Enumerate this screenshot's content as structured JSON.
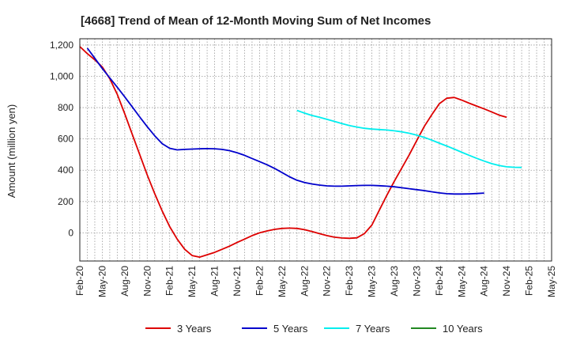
{
  "chart_data": {
    "type": "line",
    "title": "[4668]  Trend of Mean of 12-Month Moving Sum of Net Incomes",
    "ylabel": "Amount (million yen)",
    "xlabel": "",
    "x_ticks": [
      "Feb-20",
      "May-20",
      "Aug-20",
      "Nov-20",
      "Feb-21",
      "May-21",
      "Aug-21",
      "Nov-21",
      "Feb-22",
      "May-22",
      "Aug-22",
      "Nov-22",
      "Feb-23",
      "May-23",
      "Aug-23",
      "Nov-23",
      "Feb-24",
      "May-24",
      "Aug-24",
      "Nov-24",
      "Feb-25",
      "May-25"
    ],
    "y_ticks": [
      0,
      200,
      400,
      600,
      800,
      1000,
      1200
    ],
    "y_tick_labels": [
      "0",
      "200",
      "400",
      "600",
      "800",
      "1,000",
      "1,200"
    ],
    "ylim": [
      -180,
      1240
    ],
    "xlim": [
      "Feb-20",
      "May-25"
    ],
    "grid": true,
    "legend_position": "bottom",
    "series": [
      {
        "name": "3 Years",
        "color": "#dd0000",
        "points": [
          [
            "Feb-20",
            1190
          ],
          [
            "Mar-20",
            1145
          ],
          [
            "Apr-20",
            1105
          ],
          [
            "May-20",
            1060
          ],
          [
            "Jun-20",
            985
          ],
          [
            "Jul-20",
            885
          ],
          [
            "Aug-20",
            760
          ],
          [
            "Sep-20",
            630
          ],
          [
            "Oct-20",
            500
          ],
          [
            "Nov-20",
            370
          ],
          [
            "Dec-20",
            250
          ],
          [
            "Jan-21",
            140
          ],
          [
            "Feb-21",
            40
          ],
          [
            "Mar-21",
            -40
          ],
          [
            "Apr-21",
            -105
          ],
          [
            "May-21",
            -145
          ],
          [
            "Jun-21",
            -155
          ],
          [
            "Jul-21",
            -140
          ],
          [
            "Aug-21",
            -125
          ],
          [
            "Sep-21",
            -105
          ],
          [
            "Oct-21",
            -85
          ],
          [
            "Nov-21",
            -62
          ],
          [
            "Dec-21",
            -40
          ],
          [
            "Jan-22",
            -18
          ],
          [
            "Feb-22",
            0
          ],
          [
            "Mar-22",
            12
          ],
          [
            "Apr-22",
            22
          ],
          [
            "May-22",
            28
          ],
          [
            "Jun-22",
            30
          ],
          [
            "Jul-22",
            28
          ],
          [
            "Aug-22",
            20
          ],
          [
            "Sep-22",
            8
          ],
          [
            "Oct-22",
            -5
          ],
          [
            "Nov-22",
            -18
          ],
          [
            "Dec-22",
            -28
          ],
          [
            "Jan-23",
            -33
          ],
          [
            "Feb-23",
            -35
          ],
          [
            "Mar-23",
            -32
          ],
          [
            "Apr-23",
            -5
          ],
          [
            "May-23",
            50
          ],
          [
            "Jun-23",
            145
          ],
          [
            "Jul-23",
            240
          ],
          [
            "Aug-23",
            330
          ],
          [
            "Sep-23",
            415
          ],
          [
            "Oct-23",
            500
          ],
          [
            "Nov-23",
            590
          ],
          [
            "Dec-23",
            680
          ],
          [
            "Jan-24",
            755
          ],
          [
            "Feb-24",
            825
          ],
          [
            "Mar-24",
            860
          ],
          [
            "Apr-24",
            865
          ],
          [
            "May-24",
            848
          ],
          [
            "Jun-24",
            828
          ],
          [
            "Jul-24",
            810
          ],
          [
            "Aug-24",
            792
          ],
          [
            "Sep-24",
            772
          ],
          [
            "Oct-24",
            752
          ],
          [
            "Nov-24",
            738
          ]
        ]
      },
      {
        "name": "5 Years",
        "color": "#0000cc",
        "points": [
          [
            "Mar-20",
            1180
          ],
          [
            "Apr-20",
            1115
          ],
          [
            "May-20",
            1050
          ],
          [
            "Jun-20",
            990
          ],
          [
            "Jul-20",
            930
          ],
          [
            "Aug-20",
            868
          ],
          [
            "Sep-20",
            805
          ],
          [
            "Oct-20",
            740
          ],
          [
            "Nov-20",
            678
          ],
          [
            "Dec-20",
            620
          ],
          [
            "Jan-21",
            570
          ],
          [
            "Feb-21",
            540
          ],
          [
            "Mar-21",
            530
          ],
          [
            "Apr-21",
            533
          ],
          [
            "May-21",
            535
          ],
          [
            "Jun-21",
            537
          ],
          [
            "Jul-21",
            538
          ],
          [
            "Aug-21",
            537
          ],
          [
            "Sep-21",
            533
          ],
          [
            "Oct-21",
            525
          ],
          [
            "Nov-21",
            512
          ],
          [
            "Dec-21",
            495
          ],
          [
            "Jan-22",
            475
          ],
          [
            "Feb-22",
            455
          ],
          [
            "Mar-22",
            435
          ],
          [
            "Apr-22",
            412
          ],
          [
            "May-22",
            385
          ],
          [
            "Jun-22",
            358
          ],
          [
            "Jul-22",
            336
          ],
          [
            "Aug-22",
            322
          ],
          [
            "Sep-22",
            312
          ],
          [
            "Oct-22",
            305
          ],
          [
            "Nov-22",
            300
          ],
          [
            "Dec-22",
            298
          ],
          [
            "Jan-23",
            298
          ],
          [
            "Feb-23",
            300
          ],
          [
            "Mar-23",
            302
          ],
          [
            "Apr-23",
            303
          ],
          [
            "May-23",
            303
          ],
          [
            "Jun-23",
            301
          ],
          [
            "Jul-23",
            298
          ],
          [
            "Aug-23",
            294
          ],
          [
            "Sep-23",
            288
          ],
          [
            "Oct-23",
            282
          ],
          [
            "Nov-23",
            276
          ],
          [
            "Dec-23",
            270
          ],
          [
            "Jan-24",
            262
          ],
          [
            "Feb-24",
            255
          ],
          [
            "Mar-24",
            250
          ],
          [
            "Apr-24",
            248
          ],
          [
            "May-24",
            248
          ],
          [
            "Jun-24",
            249
          ],
          [
            "Jul-24",
            251
          ],
          [
            "Aug-24",
            254
          ]
        ]
      },
      {
        "name": "7 Years",
        "color": "#00eeee",
        "points": [
          [
            "Jul-22",
            782
          ],
          [
            "Aug-22",
            765
          ],
          [
            "Sep-22",
            750
          ],
          [
            "Oct-22",
            738
          ],
          [
            "Nov-22",
            725
          ],
          [
            "Dec-22",
            712
          ],
          [
            "Jan-23",
            698
          ],
          [
            "Feb-23",
            685
          ],
          [
            "Mar-23",
            676
          ],
          [
            "Apr-23",
            668
          ],
          [
            "May-23",
            663
          ],
          [
            "Jun-23",
            660
          ],
          [
            "Jul-23",
            657
          ],
          [
            "Aug-23",
            652
          ],
          [
            "Sep-23",
            645
          ],
          [
            "Oct-23",
            636
          ],
          [
            "Nov-23",
            624
          ],
          [
            "Dec-23",
            610
          ],
          [
            "Jan-24",
            592
          ],
          [
            "Feb-24",
            573
          ],
          [
            "Mar-24",
            555
          ],
          [
            "Apr-24",
            535
          ],
          [
            "May-24",
            515
          ],
          [
            "Jun-24",
            495
          ],
          [
            "Jul-24",
            476
          ],
          [
            "Aug-24",
            458
          ],
          [
            "Sep-24",
            442
          ],
          [
            "Oct-24",
            430
          ],
          [
            "Nov-24",
            422
          ],
          [
            "Dec-24",
            419
          ],
          [
            "Jan-25",
            418
          ]
        ]
      },
      {
        "name": "10 Years",
        "color": "#228822",
        "points": []
      }
    ]
  }
}
